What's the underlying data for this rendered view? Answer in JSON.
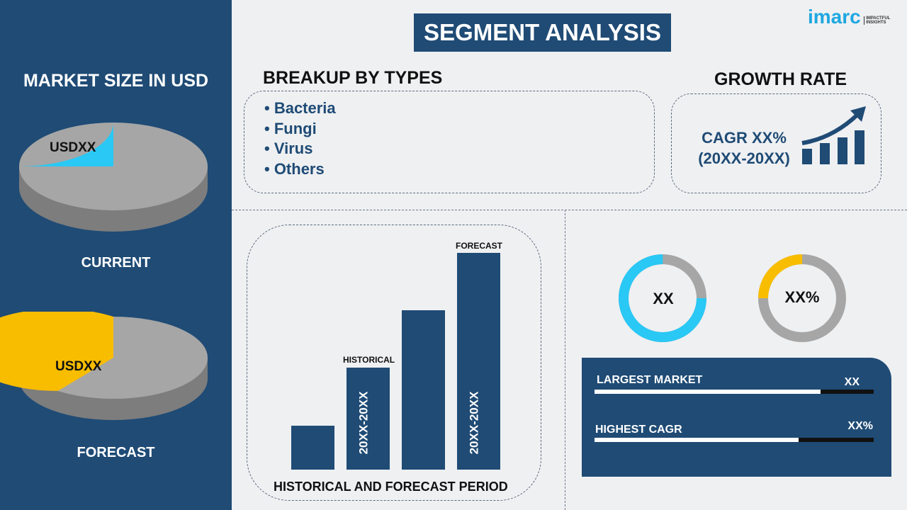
{
  "title": "SEGMENT ANALYSIS",
  "logo": {
    "brand": "imarc",
    "tagline": "IMPACTFUL INSIGHTS",
    "color": "#1ea7e1"
  },
  "left": {
    "heading": "MARKET SIZE IN USD",
    "current": {
      "label": "CURRENT",
      "value": "USDXX",
      "slice_fraction": 0.25,
      "slice_color": "#29c8f5"
    },
    "forecast": {
      "label": "FORECAST",
      "value": "USDXX",
      "slice_fraction": 0.6,
      "slice_color": "#f9bd00"
    }
  },
  "breakup": {
    "heading": "BREAKUP BY TYPES",
    "items": [
      "• Bacteria",
      "• Fungi",
      "• Virus",
      "• Others"
    ]
  },
  "growth": {
    "heading": "GROWTH RATE",
    "cagr": "CAGR XX%",
    "period": "(20XX-20XX)"
  },
  "bars": {
    "relative_heights": [
      1,
      2.3,
      3.6,
      4.9
    ],
    "historical_label": "HISTORICAL",
    "forecast_label": "FORECAST",
    "historical_period": "20XX-20XX",
    "forecast_period": "20XX-20XX",
    "caption": "HISTORICAL AND FORECAST PERIOD"
  },
  "donuts": [
    {
      "value": "XX",
      "fraction": 0.75,
      "color": "#29c8f5"
    },
    {
      "value": "XX%",
      "fraction": 0.25,
      "color": "#f9bd00"
    }
  ],
  "stats": [
    {
      "label": "LARGEST MARKET",
      "value": "XX",
      "progress": 0.81
    },
    {
      "label": "HIGHEST CAGR",
      "value": "XX%",
      "progress": 0.73
    }
  ],
  "colors": {
    "navy": "#1f4b75",
    "gray": "#a6a6a6"
  }
}
